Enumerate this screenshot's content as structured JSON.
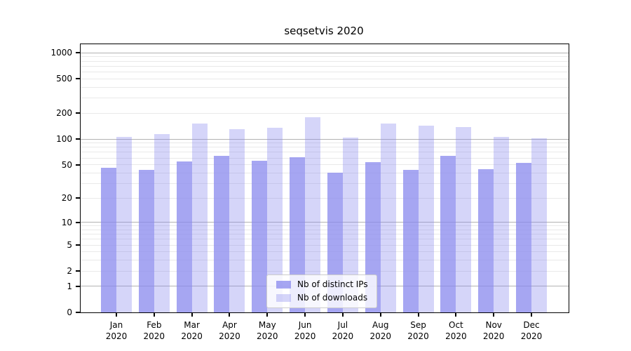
{
  "title": "seqsetvis 2020",
  "colors": {
    "bar_base": "#8888ee",
    "ips_fill": "rgba(136,136,238,0.75)",
    "downloads_fill": "rgba(136,136,238,0.35)",
    "major_gridline": "#b2b2b2",
    "minor_gridline": "#e9e9e9",
    "spine": "#000000",
    "legend_border": "#cccccc"
  },
  "legend": {
    "items": [
      {
        "label": "Nb of distinct IPs",
        "series": "ips"
      },
      {
        "label": "Nb of downloads",
        "series": "downloads"
      }
    ]
  },
  "axes": {
    "y_ticks": [
      {
        "value": 0,
        "label": "0"
      },
      {
        "value": 1,
        "label": "1"
      },
      {
        "value": 2,
        "label": "2"
      },
      {
        "value": 5,
        "label": "5"
      },
      {
        "value": 10,
        "label": "10"
      },
      {
        "value": 20,
        "label": "20"
      },
      {
        "value": 50,
        "label": "50"
      },
      {
        "value": 100,
        "label": "100"
      },
      {
        "value": 200,
        "label": "200"
      },
      {
        "value": 500,
        "label": "500"
      },
      {
        "value": 1000,
        "label": "1000"
      }
    ],
    "x_tick_line1": [
      "Jan",
      "Feb",
      "Mar",
      "Apr",
      "May",
      "Jun",
      "Jul",
      "Aug",
      "Sep",
      "Oct",
      "Nov",
      "Dec"
    ],
    "x_tick_line2": "2020"
  },
  "chart_data": {
    "type": "bar",
    "title": "seqsetvis 2020",
    "categories": [
      "Jan 2020",
      "Feb 2020",
      "Mar 2020",
      "Apr 2020",
      "May 2020",
      "Jun 2020",
      "Jul 2020",
      "Aug 2020",
      "Sep 2020",
      "Oct 2020",
      "Nov 2020",
      "Dec 2020"
    ],
    "series": [
      {
        "name": "Nb of distinct IPs",
        "values": [
          46,
          43,
          55,
          63,
          56,
          61,
          40,
          54,
          43,
          64,
          44,
          53
        ]
      },
      {
        "name": "Nb of downloads",
        "values": [
          106,
          115,
          151,
          131,
          136,
          179,
          104,
          151,
          143,
          138,
          105,
          101
        ]
      }
    ],
    "xlabel": "",
    "ylabel": "",
    "y_scale": "log1p",
    "y_tick_values": [
      0,
      1,
      2,
      5,
      10,
      20,
      50,
      100,
      200,
      500,
      1000
    ],
    "ylim": [
      0,
      1259
    ],
    "grid": "major and minor horizontal",
    "legend_position": "lower center"
  }
}
